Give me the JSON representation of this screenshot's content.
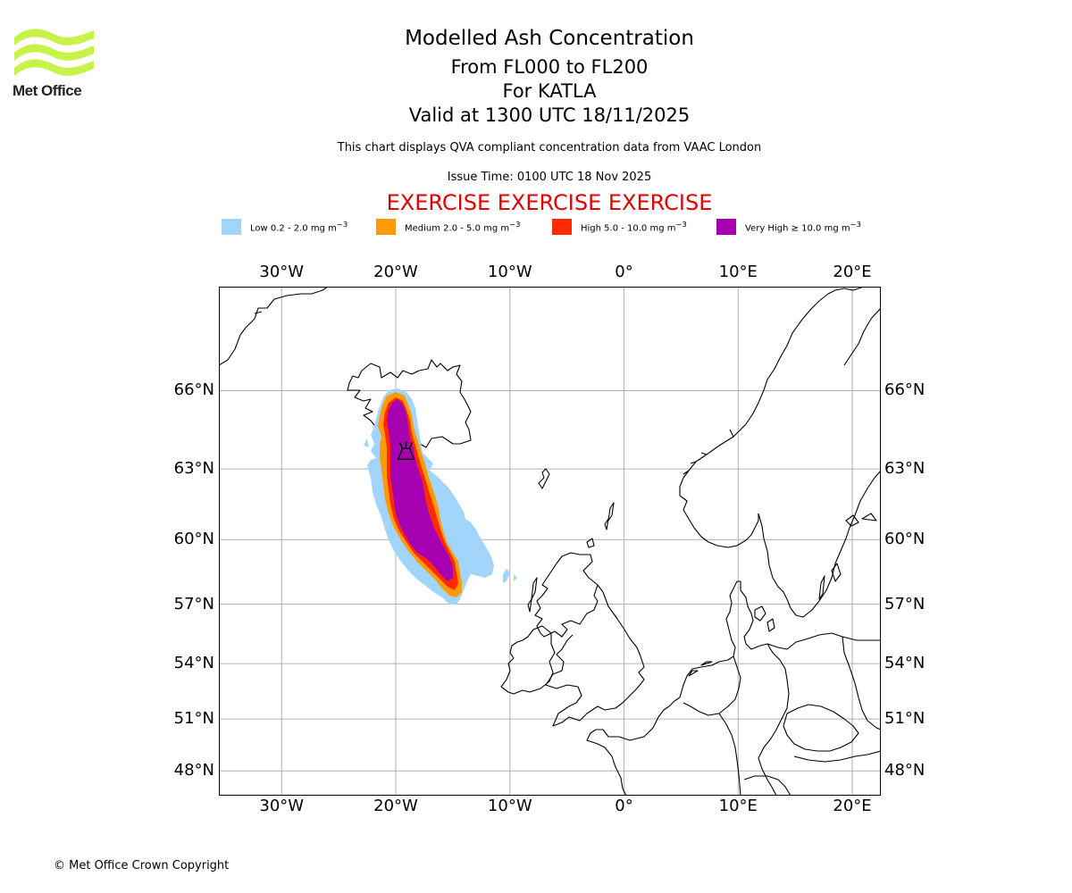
{
  "logo": {
    "text": "Met Office"
  },
  "header": {
    "title": "Modelled Ash Concentration",
    "levels": "From FL000 to FL200",
    "volcano": "For KATLA",
    "valid": "Valid at 1300 UTC 18/11/2025",
    "compliance": "This chart displays QVA compliant concentration data from VAAC London",
    "issue": "Issue Time: 0100 UTC 18 Nov 2025",
    "exercise": "EXERCISE EXERCISE EXERCISE"
  },
  "legend": [
    {
      "label": "Low 0.2 - 2.0 mg m",
      "sup": "−3",
      "color": "#a3d4fb"
    },
    {
      "label": "Medium 2.0 - 5.0 mg m",
      "sup": "−3",
      "color": "#ff9a0a"
    },
    {
      "label": "High 5.0 - 10.0 mg m",
      "sup": "−3",
      "color": "#ff2a00"
    },
    {
      "label": "Very High ≥ 10.0 mg m",
      "sup": "−3",
      "color": "#a600b0"
    }
  ],
  "map": {
    "lon_range": [
      -35.5,
      22.5
    ],
    "lat_range": [
      46.5,
      69.5
    ],
    "lon_ticks": [
      {
        "value": -30,
        "label": "30°W"
      },
      {
        "value": -20,
        "label": "20°W"
      },
      {
        "value": -10,
        "label": "10°W"
      },
      {
        "value": 0,
        "label": "0°"
      },
      {
        "value": 10,
        "label": "10°E"
      },
      {
        "value": 20,
        "label": "20°E"
      }
    ],
    "lat_ticks": [
      {
        "value": 66,
        "label": "66°N"
      },
      {
        "value": 63,
        "label": "63°N"
      },
      {
        "value": 60,
        "label": "60°N"
      },
      {
        "value": 57,
        "label": "57°N"
      },
      {
        "value": 54,
        "label": "54°N"
      },
      {
        "value": 51,
        "label": "51°N"
      },
      {
        "value": 48,
        "label": "48°N"
      }
    ],
    "volcano": {
      "name": "KATLA",
      "lon": -19.1,
      "lat": 63.6
    }
  },
  "copyright": "© Met Office Crown Copyright"
}
